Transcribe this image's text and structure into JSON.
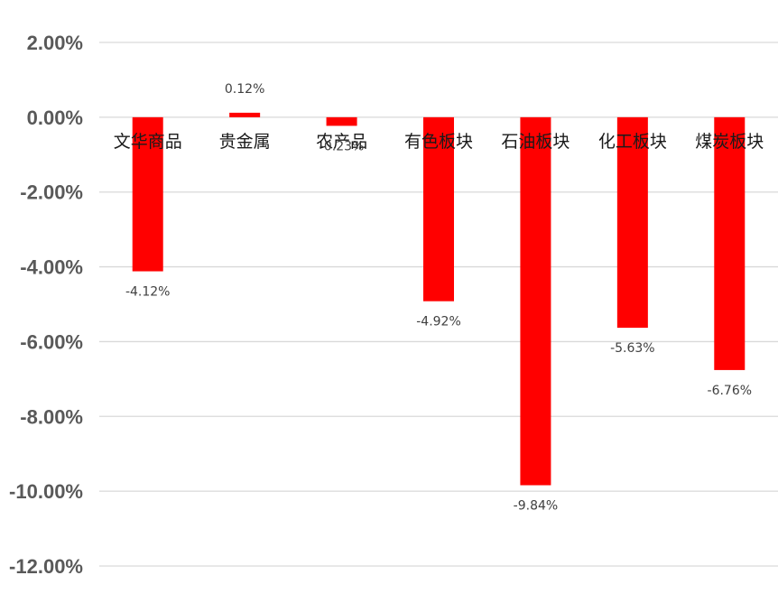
{
  "chart_data": {
    "type": "bar",
    "title": "",
    "xlabel": "",
    "ylabel": "",
    "categories": [
      "文华商品",
      "贵金属",
      "农产品",
      "有色板块",
      "石油板块",
      "化工板块",
      "煤炭板块"
    ],
    "values": [
      -4.12,
      0.12,
      -0.23,
      -4.92,
      -9.84,
      -5.63,
      -6.76
    ],
    "data_labels": [
      "-4.12%",
      "0.12%",
      "-0.23%",
      "-4.92%",
      "-9.84%",
      "-5.63%",
      "-6.76%"
    ],
    "ylim": [
      -12,
      2
    ],
    "yticks": [
      2,
      0,
      -2,
      -4,
      -6,
      -8,
      -10,
      -12
    ],
    "ytick_labels": [
      "2.00%",
      "0.00%",
      "-2.00%",
      "-4.00%",
      "-6.00%",
      "-8.00%",
      "-10.00%",
      "-12.00%"
    ],
    "grid": true,
    "legend": "none",
    "bar_color": "#ff0000",
    "grid_color": "#d9d9d9"
  }
}
